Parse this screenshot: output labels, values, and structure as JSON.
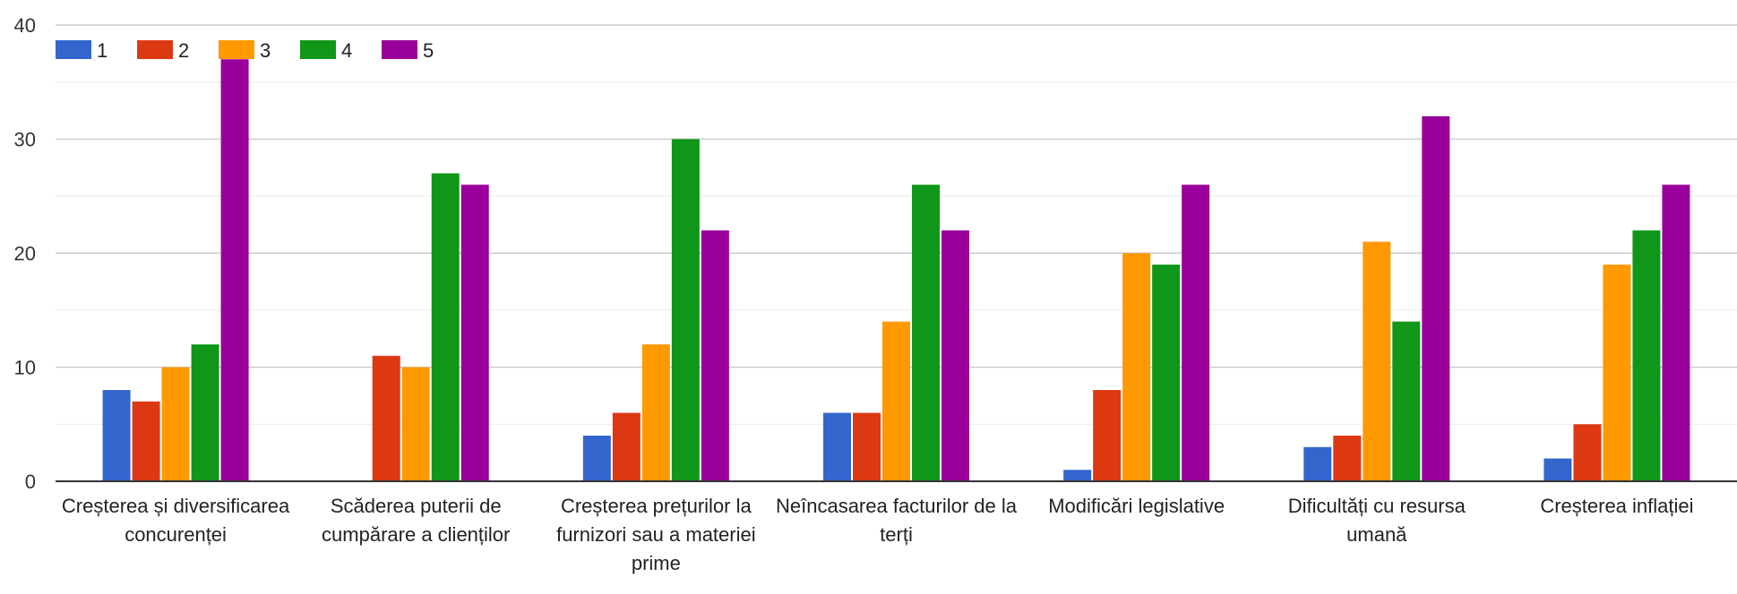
{
  "chart_data": {
    "type": "bar",
    "title": "",
    "xlabel": "",
    "ylabel": "",
    "ylim": [
      0,
      40
    ],
    "yticks": [
      0,
      10,
      20,
      30,
      40
    ],
    "grid": true,
    "legend_position": "top-left",
    "categories": [
      [
        "Creșterea și diversificarea",
        "concurenței"
      ],
      [
        "Scăderea puterii de",
        "cumpărare a clienților"
      ],
      [
        "Creșterea prețurilor la",
        "furnizori sau a materiei",
        "prime"
      ],
      [
        "Neîncasarea facturilor de la",
        "terți"
      ],
      [
        "Modificări legislative"
      ],
      [
        "Dificultăți cu resursa",
        "umană"
      ],
      [
        "Creșterea inflației"
      ]
    ],
    "series": [
      {
        "name": "1",
        "color": "#3366cc",
        "values": [
          8,
          0,
          4,
          6,
          1,
          3,
          2
        ]
      },
      {
        "name": "2",
        "color": "#dc3912",
        "values": [
          7,
          11,
          6,
          6,
          8,
          4,
          5
        ]
      },
      {
        "name": "3",
        "color": "#ff9900",
        "values": [
          10,
          10,
          12,
          14,
          20,
          21,
          19
        ]
      },
      {
        "name": "4",
        "color": "#109618",
        "values": [
          12,
          27,
          30,
          26,
          19,
          14,
          22
        ]
      },
      {
        "name": "5",
        "color": "#990099",
        "values": [
          37,
          26,
          22,
          22,
          26,
          32,
          26
        ]
      }
    ]
  }
}
